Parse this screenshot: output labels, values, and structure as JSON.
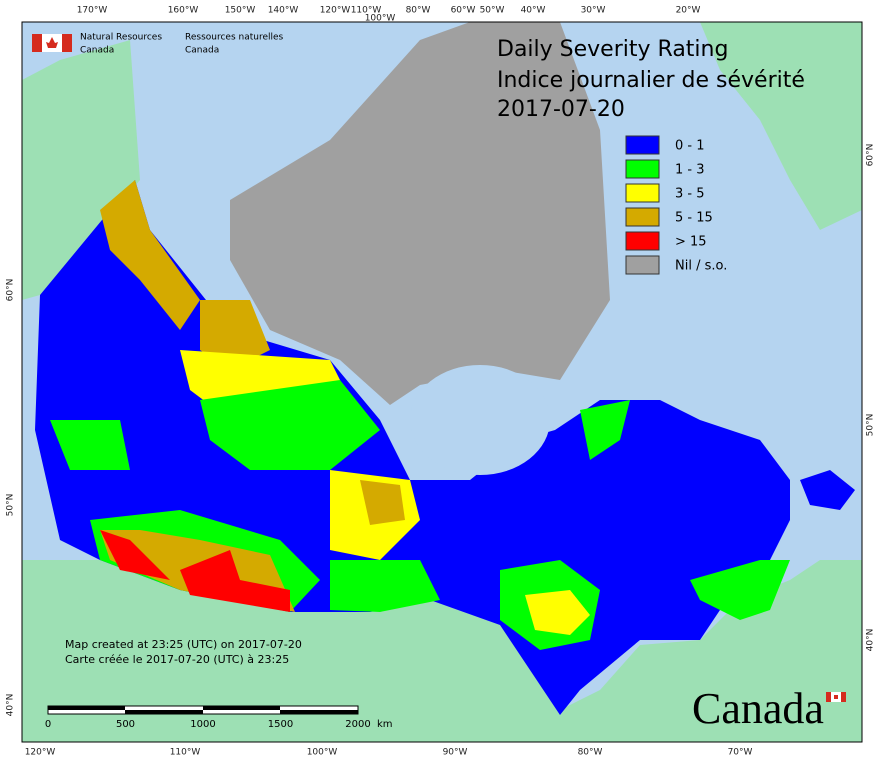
{
  "header": {
    "dept_en": [
      "Natural Resources",
      "Canada"
    ],
    "dept_fr": [
      "Ressources naturelles",
      "Canada"
    ]
  },
  "title": [
    "Daily Severity Rating",
    "Indice journalier de sévérité",
    "2017-07-20"
  ],
  "legend": [
    {
      "label": "0 - 1",
      "color": "#0000ff"
    },
    {
      "label": "1 - 3",
      "color": "#00ff00"
    },
    {
      "label": "3 - 5",
      "color": "#ffff00"
    },
    {
      "label": "5 - 15",
      "color": "#d4aa00"
    },
    {
      "label": "> 15",
      "color": "#ff0000"
    },
    {
      "label": "Nil / s.o.",
      "color": "#a0a0a0"
    }
  ],
  "graticule": {
    "top": [
      "170°W",
      "160°W",
      "150°W",
      "140°W",
      "120°W",
      "110°W",
      "100°W",
      "80°W",
      "60°W",
      "50°W",
      "40°W",
      "30°W",
      "20°W"
    ],
    "bottom": [
      "120°W",
      "110°W",
      "100°W",
      "90°W",
      "80°W",
      "70°W"
    ],
    "left": [
      "60°N",
      "50°N",
      "40°N"
    ],
    "right": [
      "60°N",
      "50°N",
      "40°N"
    ]
  },
  "credits": [
    "Map created at 23:25 (UTC) on 2017-07-20",
    "Carte créée le 2017-07-20 (UTC) à 23:25"
  ],
  "scale": {
    "labels": [
      "0",
      "500",
      "1000",
      "1500",
      "2000"
    ],
    "unit": "km"
  },
  "wordmark": "Canada"
}
